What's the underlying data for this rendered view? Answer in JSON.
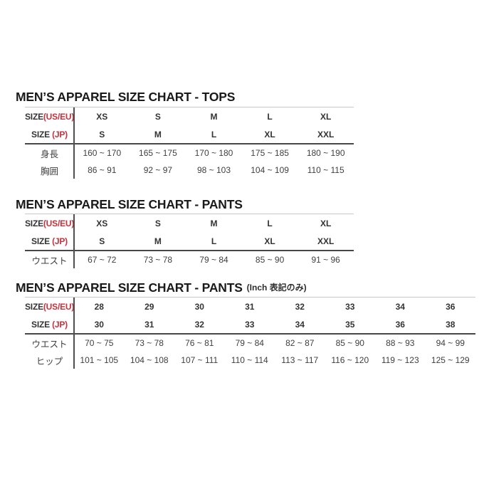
{
  "colors": {
    "accent_red": "#c8323c",
    "title_text": "#1a1a1a",
    "table_text": "#3f3f3f",
    "line_light": "#c9c9c9",
    "line_dark": "#474747"
  },
  "sections": [
    {
      "title": "MEN’S APPAREL SIZE CHART - TOPS",
      "title_suffix": "",
      "header_rows": [
        {
          "label_main": "SIZE",
          "label_accent": "(US/EU)",
          "cells": [
            "XS",
            "S",
            "M",
            "L",
            "XL"
          ]
        },
        {
          "label_main": "SIZE ",
          "label_accent": "(JP)",
          "cells": [
            "S",
            "M",
            "L",
            "XL",
            "XXL"
          ]
        }
      ],
      "body_rows": [
        {
          "label": "身長",
          "cells": [
            "160 ~ 170",
            "165 ~ 175",
            "170 ~ 180",
            "175 ~ 185",
            "180 ~ 190"
          ]
        },
        {
          "label": "胸囲",
          "cells": [
            "86 ~ 91",
            "92 ~ 97",
            "98 ~ 103",
            "104 ~ 109",
            "110 ~ 115"
          ]
        }
      ]
    },
    {
      "title": "MEN’S APPAREL SIZE CHART - PANTS",
      "title_suffix": "",
      "header_rows": [
        {
          "label_main": "SIZE",
          "label_accent": "(US/EU)",
          "cells": [
            "XS",
            "S",
            "M",
            "L",
            "XL"
          ]
        },
        {
          "label_main": "SIZE ",
          "label_accent": "(JP)",
          "cells": [
            "S",
            "M",
            "L",
            "XL",
            "XXL"
          ]
        }
      ],
      "body_rows": [
        {
          "label": "ウエスト",
          "cells": [
            "67 ~ 72",
            "73 ~ 78",
            "79 ~ 84",
            "85 ~ 90",
            "91 ~ 96"
          ]
        }
      ]
    },
    {
      "title": "MEN’S APPAREL SIZE CHART - PANTS",
      "title_suffix": "(Inch 表記のみ)",
      "header_rows": [
        {
          "label_main": "SIZE",
          "label_accent": "(US/EU)",
          "cells": [
            "28",
            "29",
            "30",
            "31",
            "32",
            "33",
            "34",
            "36"
          ]
        },
        {
          "label_main": "SIZE ",
          "label_accent": "(JP)",
          "cells": [
            "30",
            "31",
            "32",
            "33",
            "34",
            "35",
            "36",
            "38"
          ]
        }
      ],
      "body_rows": [
        {
          "label": "ウエスト",
          "cells": [
            "70 ~ 75",
            "73 ~ 78",
            "76 ~ 81",
            "79 ~ 84",
            "82 ~ 87",
            "85 ~ 90",
            "88 ~ 93",
            "94 ~ 99"
          ]
        },
        {
          "label": "ヒップ",
          "cells": [
            "101 ~ 105",
            "104 ~ 108",
            "107 ~ 111",
            "110 ~ 114",
            "113 ~ 117",
            "116 ~ 120",
            "119 ~ 123",
            "125 ~ 129"
          ]
        }
      ]
    }
  ]
}
